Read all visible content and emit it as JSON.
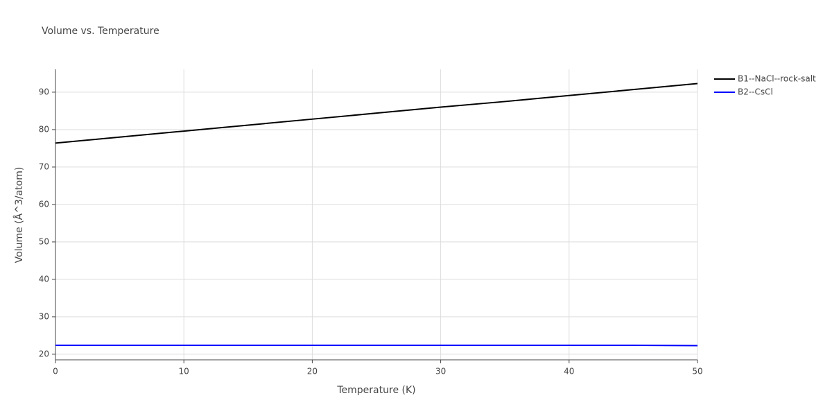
{
  "chart_data": {
    "type": "line",
    "title": "Volume vs. Temperature",
    "x_label": "Temperature (K)",
    "y_label": "Volume (Å^3/atom)",
    "x": [
      0,
      5,
      10,
      15,
      20,
      25,
      30,
      35,
      40,
      45,
      50
    ],
    "series": [
      {
        "name": "B1--NaCl--rock-salt",
        "color": "#000000",
        "values": [
          76.4,
          78.0,
          79.6,
          81.2,
          82.8,
          84.4,
          86.0,
          87.5,
          89.1,
          90.7,
          92.3
        ]
      },
      {
        "name": "B2--CsCl",
        "color": "#0000ff",
        "values": [
          22.4,
          22.4,
          22.4,
          22.4,
          22.4,
          22.4,
          22.4,
          22.4,
          22.4,
          22.4,
          22.3
        ]
      }
    ],
    "xlim": [
      0,
      50
    ],
    "xticks": [
      0,
      10,
      20,
      30,
      40,
      50
    ],
    "ylim": [
      18.5,
      96.1
    ],
    "yticks": [
      20,
      30,
      40,
      50,
      60,
      70,
      80,
      90
    ],
    "grid": true,
    "legend": "outside-top-right"
  }
}
